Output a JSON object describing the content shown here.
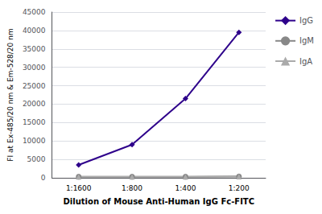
{
  "chart_data": {
    "type": "line",
    "categories": [
      "1:1600",
      "1:800",
      "1:400",
      "1:200"
    ],
    "series": [
      {
        "name": "IgG",
        "color": "#2e008b",
        "marker": "diamond",
        "values": [
          3500,
          9000,
          21500,
          39500
        ]
      },
      {
        "name": "IgM",
        "color": "#888888",
        "marker": "circle",
        "values": [
          300,
          300,
          300,
          400
        ]
      },
      {
        "name": "IgA",
        "color": "#aaaaaa",
        "marker": "triangle",
        "values": [
          250,
          250,
          250,
          350
        ]
      }
    ],
    "xlabel": "Dilution of Mouse Anti-Human IgG Fc-FITC",
    "ylabel": "FI at Ex-485/20 nm & Em-528/20 nm",
    "ylim": [
      0,
      45000
    ],
    "yticks": [
      0,
      5000,
      10000,
      15000,
      20000,
      25000,
      30000,
      35000,
      40000,
      45000
    ],
    "grid": true,
    "legend": "right"
  }
}
